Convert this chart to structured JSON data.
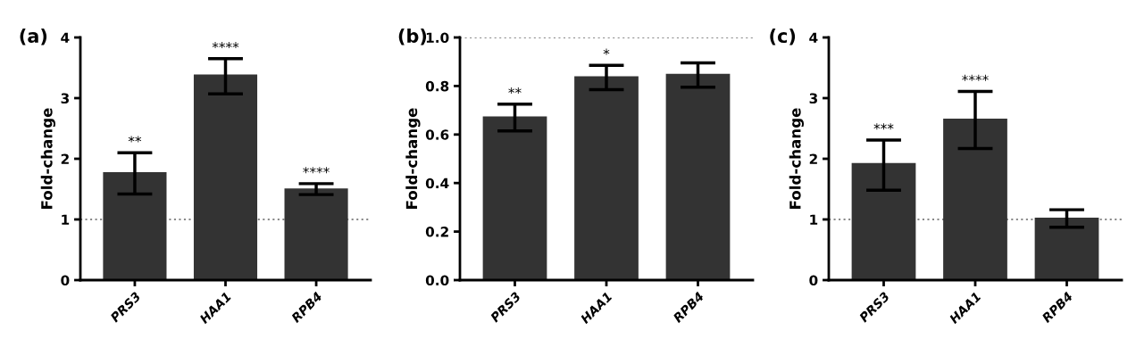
{
  "chart_data": [
    {
      "type": "bar",
      "title": "(a)",
      "ylabel": "Fold-change",
      "categories": [
        "PRS3",
        "HAA1",
        "RPB4"
      ],
      "color": "#333333",
      "values": [
        1.78,
        3.39,
        1.51
      ],
      "errors": [
        [
          1.42,
          2.1
        ],
        [
          3.07,
          3.65
        ],
        [
          1.41,
          1.59
        ]
      ],
      "ylim": [
        0,
        4
      ],
      "yticks": [
        0,
        1,
        2,
        3,
        4
      ],
      "grid": false,
      "ref_lines": [
        {
          "axis": "y",
          "value": 1,
          "label": null,
          "color": "#888888",
          "line_style": "dotted"
        }
      ],
      "annotations": [
        {
          "text": "**",
          "x": "PRS3",
          "y": 2.1
        },
        {
          "text": "****",
          "x": "HAA1",
          "y": 3.65
        },
        {
          "text": "****",
          "x": "RPB4",
          "y": 1.59
        }
      ]
    },
    {
      "type": "bar",
      "title": "(b)",
      "ylabel": "Fold-change",
      "categories": [
        "PRS3",
        "HAA1",
        "RPB4"
      ],
      "color": "#333333",
      "values": [
        0.675,
        0.84,
        0.85
      ],
      "errors": [
        [
          0.615,
          0.725
        ],
        [
          0.785,
          0.885
        ],
        [
          0.795,
          0.895
        ]
      ],
      "ylim": [
        0,
        1.0
      ],
      "yticks": [
        {
          "value": 0,
          "label": "0.0"
        },
        0.2,
        0.4,
        0.6,
        0.8,
        {
          "value": 1,
          "label": "1.0"
        }
      ],
      "grid": false,
      "ref_lines": [
        {
          "axis": "y",
          "value": 1,
          "label": null,
          "color": "#888888",
          "line_style": "dotted"
        }
      ],
      "annotations": [
        {
          "text": "**",
          "x": "PRS3",
          "y": 0.725
        },
        {
          "text": "*",
          "x": "HAA1",
          "y": 0.885
        }
      ]
    },
    {
      "type": "bar",
      "title": "(c)",
      "ylabel": "Fold-change",
      "categories": [
        "PRS3",
        "HAA1",
        "RPB4"
      ],
      "color": "#333333",
      "values": [
        1.93,
        2.66,
        1.03
      ],
      "errors": [
        [
          1.48,
          2.31
        ],
        [
          2.17,
          3.11
        ],
        [
          0.87,
          1.16
        ]
      ],
      "ylim": [
        0,
        4
      ],
      "yticks": [
        0,
        1,
        2,
        3,
        4
      ],
      "grid": false,
      "ref_lines": [
        {
          "axis": "y",
          "value": 1,
          "label": null,
          "color": "#888888",
          "line_style": "dotted"
        }
      ],
      "annotations": [
        {
          "text": "***",
          "x": "PRS3",
          "y": 2.31
        },
        {
          "text": "****",
          "x": "HAA1",
          "y": 3.11
        }
      ]
    }
  ]
}
